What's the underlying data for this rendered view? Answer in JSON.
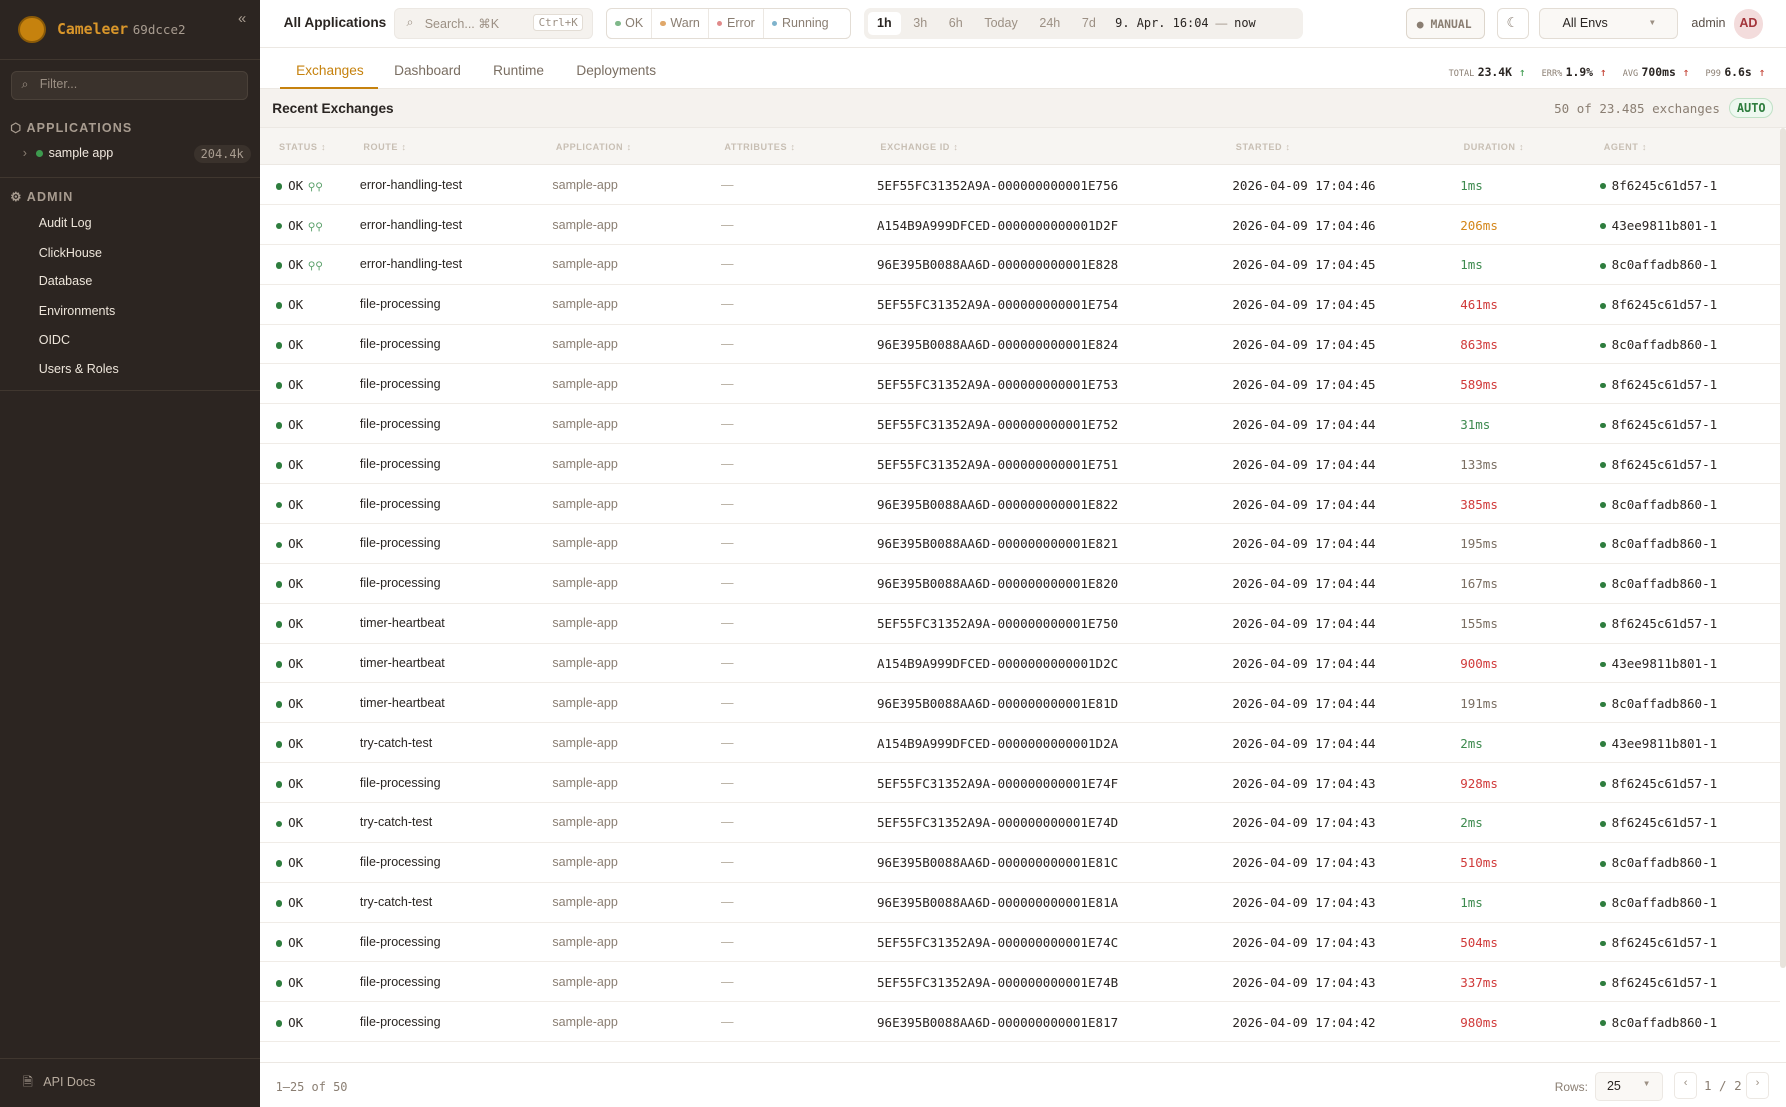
{
  "sidebar": {
    "brand": "Cameleer",
    "version": "69dcce2",
    "collapse": "«",
    "filter_placeholder": "Filter...",
    "applications_label": "APPLICATIONS",
    "apps": [
      {
        "name": "sample app",
        "count": "204.4k"
      }
    ],
    "admin_label": "ADMIN",
    "admin_items": [
      "Audit Log",
      "ClickHouse",
      "Database",
      "Environments",
      "OIDC",
      "Users & Roles"
    ],
    "api_docs": "API Docs"
  },
  "topbar": {
    "title": "All Applications",
    "search_placeholder": "Search... ⌘K",
    "search_shortcut": "Ctrl+K",
    "status_filters": [
      {
        "label": "OK",
        "color": "#7fb88a"
      },
      {
        "label": "Warn",
        "color": "#e0a86a"
      },
      {
        "label": "Error",
        "color": "#e08a8a"
      },
      {
        "label": "Running",
        "color": "#7fb3cc"
      }
    ],
    "ranges": [
      "1h",
      "3h",
      "6h",
      "Today",
      "24h",
      "7d"
    ],
    "active_range": "1h",
    "range_from": "9. Apr. 16:04",
    "range_sep": "—",
    "range_to": "now",
    "manual": "MANUAL",
    "env": "All Envs",
    "user": "admin",
    "avatar": "AD"
  },
  "tabs": [
    "Exchanges",
    "Dashboard",
    "Runtime",
    "Deployments"
  ],
  "active_tab": "Exchanges",
  "kpis": [
    {
      "label": "TOTAL",
      "value": "23.4K",
      "trend": "↑",
      "trend_color": "#3d9a4e"
    },
    {
      "label": "ERR%",
      "value": "1.9%",
      "trend": "↑",
      "trend_color": "#c0392b"
    },
    {
      "label": "AVG",
      "value": "700ms",
      "trend": "↑",
      "trend_color": "#c0392b"
    },
    {
      "label": "P99",
      "value": "6.6s",
      "trend": "↑",
      "trend_color": "#c0392b"
    }
  ],
  "exchanges": {
    "title": "Recent Exchanges",
    "count": "50 of 23.485 exchanges",
    "auto": "AUTO",
    "columns": [
      "STATUS",
      "ROUTE",
      "APPLICATION",
      "ATTRIBUTES",
      "EXCHANGE ID",
      "STARTED",
      "DURATION",
      "AGENT"
    ],
    "rows": [
      {
        "status": "OK",
        "trace": true,
        "route": "error-handling-test",
        "app": "sample-app",
        "attrs": "—",
        "id": "5EF55FC31352A9A-000000000001E756",
        "started": "2026-04-09 17:04:46",
        "duration": "1ms",
        "dur_color": "#3d8a4e",
        "agent": "8f6245c61d57-1"
      },
      {
        "status": "OK",
        "trace": true,
        "route": "error-handling-test",
        "app": "sample-app",
        "attrs": "—",
        "id": "A154B9A999DFCED-0000000000001D2F",
        "started": "2026-04-09 17:04:46",
        "duration": "206ms",
        "dur_color": "#d4861a",
        "agent": "43ee9811b801-1"
      },
      {
        "status": "OK",
        "trace": true,
        "route": "error-handling-test",
        "app": "sample-app",
        "attrs": "—",
        "id": "96E395B0088AA6D-000000000001E828",
        "started": "2026-04-09 17:04:45",
        "duration": "1ms",
        "dur_color": "#3d8a4e",
        "agent": "8c0affadb860-1"
      },
      {
        "status": "OK",
        "route": "file-processing",
        "app": "sample-app",
        "attrs": "—",
        "id": "5EF55FC31352A9A-000000000001E754",
        "started": "2026-04-09 17:04:45",
        "duration": "461ms",
        "dur_color": "#d03a3a",
        "agent": "8f6245c61d57-1"
      },
      {
        "status": "OK",
        "route": "file-processing",
        "app": "sample-app",
        "attrs": "—",
        "id": "96E395B0088AA6D-000000000001E824",
        "started": "2026-04-09 17:04:45",
        "duration": "863ms",
        "dur_color": "#d03a3a",
        "agent": "8c0affadb860-1"
      },
      {
        "status": "OK",
        "route": "file-processing",
        "app": "sample-app",
        "attrs": "—",
        "id": "5EF55FC31352A9A-000000000001E753",
        "started": "2026-04-09 17:04:45",
        "duration": "589ms",
        "dur_color": "#d03a3a",
        "agent": "8f6245c61d57-1"
      },
      {
        "status": "OK",
        "route": "file-processing",
        "app": "sample-app",
        "attrs": "—",
        "id": "5EF55FC31352A9A-000000000001E752",
        "started": "2026-04-09 17:04:44",
        "duration": "31ms",
        "dur_color": "#3d8a4e",
        "agent": "8f6245c61d57-1"
      },
      {
        "status": "OK",
        "route": "file-processing",
        "app": "sample-app",
        "attrs": "—",
        "id": "5EF55FC31352A9A-000000000001E751",
        "started": "2026-04-09 17:04:44",
        "duration": "133ms",
        "dur_color": "#7a6e62",
        "agent": "8f6245c61d57-1"
      },
      {
        "status": "OK",
        "route": "file-processing",
        "app": "sample-app",
        "attrs": "—",
        "id": "96E395B0088AA6D-000000000001E822",
        "started": "2026-04-09 17:04:44",
        "duration": "385ms",
        "dur_color": "#d03a3a",
        "agent": "8c0affadb860-1"
      },
      {
        "status": "OK",
        "route": "file-processing",
        "app": "sample-app",
        "attrs": "—",
        "id": "96E395B0088AA6D-000000000001E821",
        "started": "2026-04-09 17:04:44",
        "duration": "195ms",
        "dur_color": "#7a6e62",
        "agent": "8c0affadb860-1"
      },
      {
        "status": "OK",
        "route": "file-processing",
        "app": "sample-app",
        "attrs": "—",
        "id": "96E395B0088AA6D-000000000001E820",
        "started": "2026-04-09 17:04:44",
        "duration": "167ms",
        "dur_color": "#7a6e62",
        "agent": "8c0affadb860-1"
      },
      {
        "status": "OK",
        "route": "timer-heartbeat",
        "app": "sample-app",
        "attrs": "—",
        "id": "5EF55FC31352A9A-000000000001E750",
        "started": "2026-04-09 17:04:44",
        "duration": "155ms",
        "dur_color": "#7a6e62",
        "agent": "8f6245c61d57-1"
      },
      {
        "status": "OK",
        "route": "timer-heartbeat",
        "app": "sample-app",
        "attrs": "—",
        "id": "A154B9A999DFCED-0000000000001D2C",
        "started": "2026-04-09 17:04:44",
        "duration": "900ms",
        "dur_color": "#d03a3a",
        "agent": "43ee9811b801-1"
      },
      {
        "status": "OK",
        "route": "timer-heartbeat",
        "app": "sample-app",
        "attrs": "—",
        "id": "96E395B0088AA6D-000000000001E81D",
        "started": "2026-04-09 17:04:44",
        "duration": "191ms",
        "dur_color": "#7a6e62",
        "agent": "8c0affadb860-1"
      },
      {
        "status": "OK",
        "route": "try-catch-test",
        "app": "sample-app",
        "attrs": "—",
        "id": "A154B9A999DFCED-0000000000001D2A",
        "started": "2026-04-09 17:04:44",
        "duration": "2ms",
        "dur_color": "#3d8a4e",
        "agent": "43ee9811b801-1"
      },
      {
        "status": "OK",
        "route": "file-processing",
        "app": "sample-app",
        "attrs": "—",
        "id": "5EF55FC31352A9A-000000000001E74F",
        "started": "2026-04-09 17:04:43",
        "duration": "928ms",
        "dur_color": "#d03a3a",
        "agent": "8f6245c61d57-1"
      },
      {
        "status": "OK",
        "route": "try-catch-test",
        "app": "sample-app",
        "attrs": "—",
        "id": "5EF55FC31352A9A-000000000001E74D",
        "started": "2026-04-09 17:04:43",
        "duration": "2ms",
        "dur_color": "#3d8a4e",
        "agent": "8f6245c61d57-1"
      },
      {
        "status": "OK",
        "route": "file-processing",
        "app": "sample-app",
        "attrs": "—",
        "id": "96E395B0088AA6D-000000000001E81C",
        "started": "2026-04-09 17:04:43",
        "duration": "510ms",
        "dur_color": "#d03a3a",
        "agent": "8c0affadb860-1"
      },
      {
        "status": "OK",
        "route": "try-catch-test",
        "app": "sample-app",
        "attrs": "—",
        "id": "96E395B0088AA6D-000000000001E81A",
        "started": "2026-04-09 17:04:43",
        "duration": "1ms",
        "dur_color": "#3d8a4e",
        "agent": "8c0affadb860-1"
      },
      {
        "status": "OK",
        "route": "file-processing",
        "app": "sample-app",
        "attrs": "—",
        "id": "5EF55FC31352A9A-000000000001E74C",
        "started": "2026-04-09 17:04:43",
        "duration": "504ms",
        "dur_color": "#d03a3a",
        "agent": "8f6245c61d57-1"
      },
      {
        "status": "OK",
        "route": "file-processing",
        "app": "sample-app",
        "attrs": "—",
        "id": "5EF55FC31352A9A-000000000001E74B",
        "started": "2026-04-09 17:04:43",
        "duration": "337ms",
        "dur_color": "#d03a3a",
        "agent": "8f6245c61d57-1"
      },
      {
        "status": "OK",
        "route": "file-processing",
        "app": "sample-app",
        "attrs": "—",
        "id": "96E395B0088AA6D-000000000001E817",
        "started": "2026-04-09 17:04:42",
        "duration": "980ms",
        "dur_color": "#d03a3a",
        "agent": "8c0affadb860-1"
      }
    ]
  },
  "footer": {
    "range": "1–25 of 50",
    "rows_label": "Rows:",
    "rows_value": "25",
    "page": "1 / 2",
    "prev": "‹",
    "next": "›"
  },
  "colors": {
    "accent": "#c6820e",
    "sidebar_bg": "#2c2521",
    "ok": "#2e7d3e"
  }
}
